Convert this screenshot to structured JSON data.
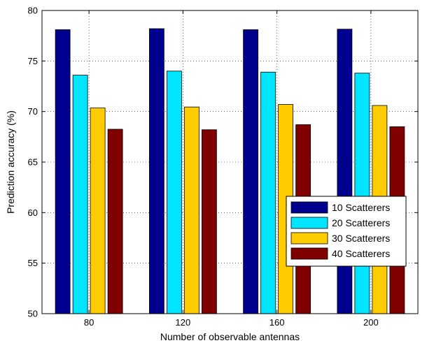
{
  "chart_data": {
    "type": "bar",
    "title": "",
    "xlabel": "Number of observable antennas",
    "ylabel": "Prediction accuracy (%)",
    "categories": [
      "80",
      "120",
      "160",
      "200"
    ],
    "ylim": [
      50,
      80
    ],
    "yticks": [
      50,
      55,
      60,
      65,
      70,
      75,
      80
    ],
    "grid": true,
    "legend_position": "lower-right",
    "series": [
      {
        "name": "10 Scatterers",
        "color": "#00008f",
        "values": [
          78.1,
          78.2,
          78.1,
          78.15
        ]
      },
      {
        "name": "20 Scatterers",
        "color": "#00e5ff",
        "values": [
          73.6,
          74.0,
          73.9,
          73.8
        ]
      },
      {
        "name": "30 Scatterers",
        "color": "#ffcc00",
        "values": [
          70.35,
          70.45,
          70.7,
          70.6
        ]
      },
      {
        "name": "40 Scatterers",
        "color": "#800000",
        "values": [
          68.25,
          68.2,
          68.7,
          68.5
        ]
      }
    ]
  }
}
